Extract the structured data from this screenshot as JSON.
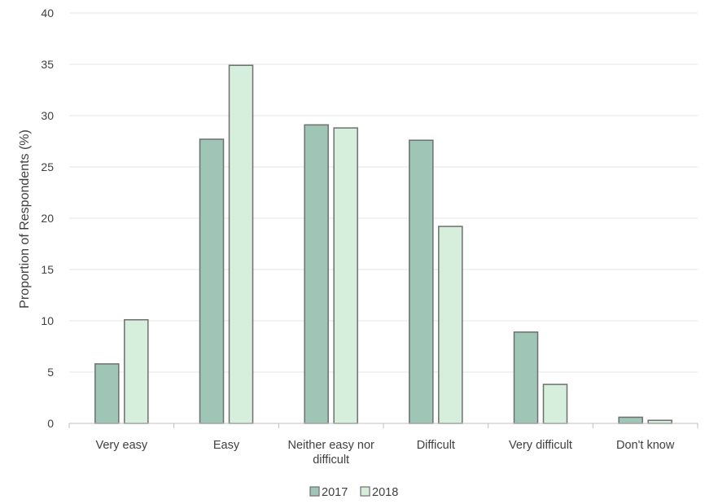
{
  "chart_data": {
    "type": "bar",
    "title": "",
    "xlabel": "",
    "ylabel": "Proportion of Respondents (%)",
    "ylim": [
      0,
      40
    ],
    "yticks": [
      0,
      5,
      10,
      15,
      20,
      25,
      30,
      35,
      40
    ],
    "grid": true,
    "legend_position": "bottom",
    "categories": [
      "Very easy",
      "Easy",
      "Neither easy nor difficult",
      "Difficult",
      "Very difficult",
      "Don't know"
    ],
    "series": [
      {
        "name": "2017",
        "color": "#9fc5b6",
        "values": [
          5.8,
          27.7,
          29.1,
          27.6,
          8.9,
          0.6
        ]
      },
      {
        "name": "2018",
        "color": "#d5efdc",
        "values": [
          10.1,
          34.9,
          28.8,
          19.2,
          3.8,
          0.3
        ]
      }
    ],
    "bar_stroke": "#6f6f6f",
    "grid_color": "#e4e4e4"
  }
}
